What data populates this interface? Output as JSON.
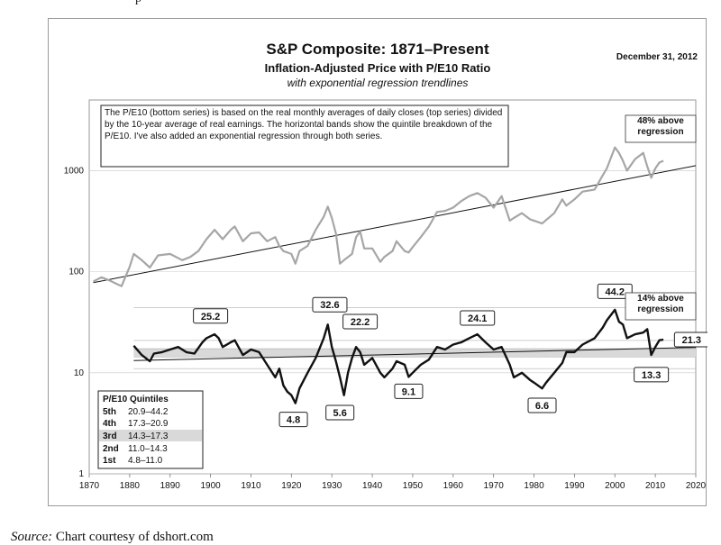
{
  "page": {
    "top_fragment": "p",
    "source_label": "Source:",
    "source_text": "Chart courtesy of dshort.com"
  },
  "chart_data": {
    "type": "line",
    "title": "S&P Composite: 1871–Present",
    "subtitle": "Inflation-Adjusted Price with P/E10 Ratio",
    "subtitle2": "with exponential regression trendlines",
    "date_label": "December 31, 2012",
    "note": "The P/E10  (bottom series) is based on the real monthly averages of daily closes (top series) divided by the 10-year average of real earnings. The horizontal bands show the quintile breakdown of the P/E10.  I've also added an exponential regression through both series.",
    "xlim": [
      1870,
      2020
    ],
    "ylim": [
      1,
      5000
    ],
    "y_scale": "log",
    "x_ticks": [
      "1870",
      "1880",
      "1890",
      "1900",
      "1910",
      "1920",
      "1930",
      "1940",
      "1950",
      "1960",
      "1970",
      "1980",
      "1990",
      "2000",
      "2010",
      "2020"
    ],
    "y_ticks": [
      {
        "value": 1,
        "label": "1"
      },
      {
        "value": 10,
        "label": "10"
      },
      {
        "value": 100,
        "label": "100"
      },
      {
        "value": 1000,
        "label": "1000"
      }
    ],
    "series": [
      {
        "color": "#a6a6a6",
        "x": [
          1871,
          1873,
          1875,
          1877,
          1878,
          1880,
          1881,
          1883,
          1885,
          1887,
          1890,
          1893,
          1895,
          1897,
          1899,
          1901,
          1903,
          1905,
          1906,
          1908,
          1910,
          1912,
          1914,
          1916,
          1917,
          1918,
          1920,
          1921,
          1922,
          1924,
          1926,
          1928,
          1929,
          1930,
          1931,
          1932,
          1933,
          1935,
          1936,
          1937,
          1938,
          1940,
          1942,
          1943,
          1945,
          1946,
          1948,
          1949,
          1950,
          1952,
          1954,
          1956,
          1958,
          1960,
          1962,
          1964,
          1966,
          1968,
          1970,
          1972,
          1974,
          1975,
          1977,
          1979,
          1982,
          1985,
          1987,
          1988,
          1990,
          1992,
          1995,
          1997,
          1998,
          2000,
          2001,
          2002,
          2003,
          2005,
          2007,
          2008,
          2009,
          2010,
          2011,
          2012
        ],
        "values": [
          80,
          88,
          82,
          75,
          72,
          112,
          150,
          130,
          110,
          145,
          150,
          130,
          140,
          160,
          210,
          260,
          210,
          260,
          280,
          200,
          240,
          245,
          200,
          220,
          180,
          160,
          150,
          120,
          160,
          180,
          260,
          350,
          440,
          340,
          240,
          120,
          130,
          150,
          220,
          250,
          170,
          170,
          125,
          140,
          160,
          200,
          160,
          155,
          175,
          220,
          280,
          390,
          400,
          430,
          500,
          560,
          600,
          540,
          430,
          560,
          320,
          340,
          380,
          330,
          300,
          380,
          520,
          450,
          520,
          620,
          650,
          900,
          1050,
          1700,
          1500,
          1250,
          1000,
          1300,
          1500,
          1100,
          850,
          1050,
          1200,
          1250
        ]
      },
      {
        "color": "#111111",
        "x": [
          1881,
          1883,
          1885,
          1886,
          1888,
          1890,
          1892,
          1894,
          1896,
          1898,
          1899,
          1901,
          1902,
          1903,
          1905,
          1906,
          1908,
          1910,
          1912,
          1914,
          1916,
          1917,
          1918,
          1919,
          1920,
          1921,
          1922,
          1924,
          1926,
          1928,
          1929,
          1930,
          1931,
          1932,
          1933,
          1934,
          1935,
          1936,
          1937,
          1938,
          1940,
          1942,
          1943,
          1945,
          1946,
          1948,
          1949,
          1950,
          1952,
          1954,
          1956,
          1958,
          1960,
          1962,
          1964,
          1966,
          1968,
          1970,
          1972,
          1974,
          1975,
          1977,
          1979,
          1980,
          1982,
          1983,
          1985,
          1987,
          1988,
          1990,
          1992,
          1995,
          1997,
          1998,
          2000,
          2001,
          2002,
          2003,
          2005,
          2007,
          2008,
          2009,
          2010,
          2011,
          2012
        ],
        "values": [
          18.5,
          15,
          13,
          15.5,
          16,
          17,
          18,
          16,
          15.5,
          20,
          22,
          24,
          22,
          18,
          20,
          21,
          15,
          17,
          16,
          12,
          9,
          11,
          7.5,
          6.5,
          6,
          5,
          7,
          10,
          14,
          22,
          30,
          18,
          13,
          9,
          6,
          10,
          14,
          18,
          16,
          12,
          14,
          10,
          9,
          11,
          13,
          12,
          9.1,
          10,
          12,
          13.5,
          18,
          17,
          19,
          20,
          22,
          24,
          20,
          17,
          18,
          12,
          9,
          10,
          8.5,
          8,
          7,
          8,
          10,
          12.5,
          16,
          16,
          19,
          22,
          28,
          33,
          42,
          32,
          30,
          22,
          24,
          25,
          27,
          15,
          18,
          21,
          21.3
        ]
      }
    ],
    "trendlines": [
      {
        "x": [
          1871,
          2020
        ],
        "values": [
          78,
          1120
        ]
      },
      {
        "x": [
          1881,
          2020
        ],
        "values": [
          13.2,
          17.8
        ]
      }
    ],
    "quintile_bands": [
      {
        "range": [
          14.3,
          17.3
        ],
        "color": "#d9d9d9"
      }
    ],
    "reference_lines": [
      11.0,
      14.3,
      17.3,
      20.9,
      44.2
    ],
    "annotations": [
      {
        "text": "25.2",
        "x": 1900,
        "y": 25.2
      },
      {
        "text": "4.8",
        "x": 1920.5,
        "y": 4.8
      },
      {
        "text": "32.6",
        "x": 1929.5,
        "y": 32.6
      },
      {
        "text": "5.6",
        "x": 1932,
        "y": 5.6
      },
      {
        "text": "22.2",
        "x": 1937,
        "y": 22.2
      },
      {
        "text": "9.1",
        "x": 1949,
        "y": 9.1
      },
      {
        "text": "24.1",
        "x": 1966,
        "y": 24.1
      },
      {
        "text": "6.6",
        "x": 1982,
        "y": 6.6
      },
      {
        "text": "44.2",
        "x": 2000,
        "y": 44.2
      },
      {
        "text": "13.3",
        "x": 2009,
        "y": 13.3
      },
      {
        "text": "21.3",
        "x": 2012.5,
        "y": 21.3
      }
    ],
    "callouts": [
      {
        "text": "48% above regression"
      },
      {
        "text": "14% above regression"
      }
    ],
    "quintile_table": {
      "title": "P/E10 Quintiles",
      "rows": [
        {
          "label": "5th",
          "range": "20.9–44.2"
        },
        {
          "label": "4th",
          "range": "17.3–20.9"
        },
        {
          "label": "3rd",
          "range": "14.3–17.3"
        },
        {
          "label": "2nd",
          "range": "11.0–14.3"
        },
        {
          "label": "1st",
          "range": "4.8–11.0"
        }
      ]
    },
    "grid": true
  }
}
